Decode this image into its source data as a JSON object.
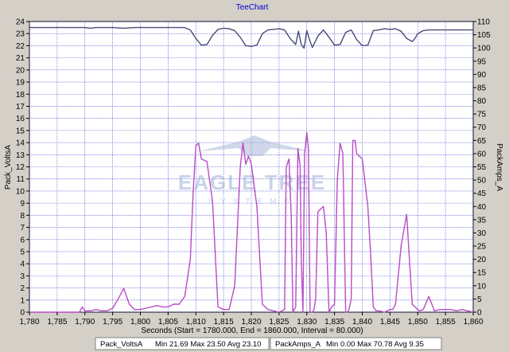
{
  "window": {
    "title": "TeeChart"
  },
  "chart_data": {
    "type": "line",
    "title": "TeeChart",
    "xlabel": "Seconds (Start = 1780.000,  End = 1860.000,  Interval = 80.000)",
    "ylabel_left": "Pack_VoltsA",
    "ylabel_right": "PackAmps_A",
    "xlim": [
      1780,
      1860
    ],
    "ylim_left": [
      0,
      24
    ],
    "ylim_right": [
      0,
      110
    ],
    "x_ticks": [
      "1,780",
      "1,785",
      "1,790",
      "1,795",
      "1,800",
      "1,805",
      "1,810",
      "1,815",
      "1,820",
      "1,825",
      "1,830",
      "1,835",
      "1,840",
      "1,845",
      "1,850",
      "1,855",
      "1,860"
    ],
    "y_left_ticks": [
      "0",
      "1",
      "2",
      "3",
      "4",
      "5",
      "6",
      "7",
      "8",
      "9",
      "10",
      "11",
      "12",
      "13",
      "14",
      "15",
      "16",
      "17",
      "18",
      "19",
      "20",
      "21",
      "22",
      "23",
      "24"
    ],
    "y_right_ticks": [
      "0",
      "5",
      "10",
      "15",
      "20",
      "25",
      "30",
      "35",
      "40",
      "45",
      "50",
      "55",
      "60",
      "65",
      "70",
      "75",
      "80",
      "85",
      "90",
      "95",
      "100",
      "105",
      "110"
    ],
    "grid": true,
    "series": [
      {
        "name": "Pack_VoltsA",
        "axis": "left",
        "color": "#4a4a7a",
        "x": [
          1780,
          1790,
          1791,
          1792,
          1795,
          1797,
          1799,
          1808,
          1809,
          1810,
          1811,
          1812,
          1813,
          1814,
          1815,
          1816,
          1817,
          1818,
          1819,
          1820,
          1821,
          1822,
          1823,
          1824,
          1825,
          1826,
          1827,
          1828,
          1828.5,
          1829,
          1829.5,
          1830,
          1830.5,
          1831,
          1832,
          1833,
          1834,
          1835,
          1836,
          1837,
          1838,
          1839,
          1840,
          1841,
          1842,
          1843,
          1844,
          1845,
          1846,
          1847,
          1848,
          1849,
          1849.5,
          1850,
          1851,
          1852,
          1853,
          1855,
          1860
        ],
        "y": [
          23.5,
          23.5,
          23.45,
          23.5,
          23.5,
          23.45,
          23.5,
          23.5,
          23.3,
          22.6,
          22.05,
          22.1,
          22.85,
          23.35,
          23.45,
          23.4,
          23.25,
          22.7,
          22.0,
          21.95,
          22.05,
          23.0,
          23.3,
          23.35,
          23.4,
          23.3,
          22.6,
          22.1,
          23.2,
          22.1,
          21.8,
          23.25,
          22.5,
          21.85,
          22.8,
          23.3,
          22.7,
          22.05,
          22.1,
          23.1,
          23.3,
          22.5,
          22.0,
          22.05,
          23.25,
          23.3,
          23.4,
          23.35,
          23.4,
          23.2,
          22.6,
          22.35,
          22.6,
          23.0,
          23.25,
          23.3,
          23.3,
          23.3,
          23.3
        ]
      },
      {
        "name": "PackAmps_A",
        "axis": "right",
        "color": "#b94cc4",
        "x": [
          1780,
          1787,
          1788,
          1789,
          1789.5,
          1790,
          1791,
          1792,
          1793,
          1794,
          1795,
          1796,
          1797,
          1798,
          1799,
          1800,
          1801,
          1802,
          1803,
          1804,
          1805,
          1806,
          1807,
          1808,
          1809,
          1809.5,
          1810,
          1810.5,
          1811,
          1812,
          1813,
          1814,
          1815,
          1816,
          1817,
          1818,
          1818.5,
          1819,
          1819.5,
          1820,
          1821,
          1822,
          1823,
          1824,
          1825,
          1826,
          1826.3,
          1826.8,
          1827.2,
          1827.5,
          1828,
          1828.4,
          1828.8,
          1829,
          1829.3,
          1829.6,
          1830,
          1830.3,
          1830.6,
          1831,
          1831.3,
          1831.6,
          1832,
          1833,
          1833.5,
          1834,
          1834.5,
          1835,
          1835.5,
          1836,
          1836.5,
          1837,
          1837.3,
          1837.6,
          1838,
          1838.3,
          1838.7,
          1839,
          1840,
          1841,
          1841.5,
          1842,
          1842.5,
          1843,
          1844,
          1845,
          1845.5,
          1846,
          1847,
          1848,
          1848.5,
          1849,
          1849.5,
          1850,
          1850.3,
          1851,
          1852,
          1853,
          1854,
          1855,
          1856,
          1857,
          1858,
          1859,
          1860
        ],
        "y": [
          0,
          0,
          0,
          0,
          2,
          0.5,
          0.5,
          1,
          0.5,
          0.5,
          1.5,
          5,
          9,
          3,
          1,
          1,
          1.5,
          2,
          2.5,
          2,
          2,
          3,
          3,
          6,
          20,
          45,
          63,
          64,
          58,
          57,
          42,
          2,
          1,
          1,
          10,
          55,
          64,
          56,
          59,
          56,
          40,
          3,
          1,
          0.5,
          0,
          1,
          55,
          58,
          36,
          0,
          2,
          62,
          55,
          20,
          0,
          60,
          68,
          62,
          0,
          0,
          1,
          5,
          38,
          40,
          30,
          0,
          2,
          3,
          50,
          64,
          60,
          0,
          0,
          1,
          5,
          65,
          65,
          60,
          58,
          40,
          22,
          2,
          0.5,
          0.5,
          0,
          1,
          1,
          3,
          25,
          37,
          20,
          3,
          2,
          1,
          0.5,
          1,
          6,
          0.5,
          1,
          1,
          1,
          0.5,
          1,
          0.5,
          0
        ]
      }
    ],
    "legend": [
      {
        "series": "Pack_VoltsA",
        "stats": "Min 21.69   Max 23.50   Avg 23.10"
      },
      {
        "series": "PackAmps_A",
        "stats": "Min 0.00   Max 70.78   Avg 9.35"
      }
    ],
    "watermark": {
      "line1": "EAGLE TREE",
      "line2": "SYSTEMS"
    }
  }
}
